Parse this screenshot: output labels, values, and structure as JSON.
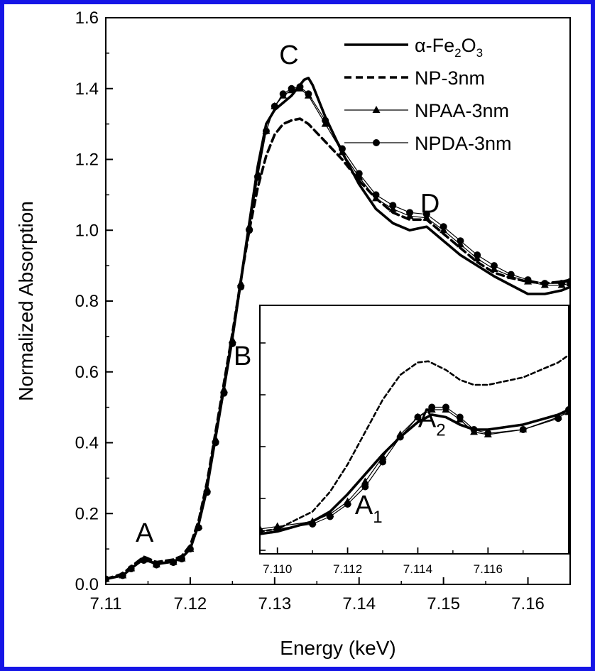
{
  "chart_data": [
    {
      "type": "line",
      "title": "",
      "xlabel": "Energy (keV)",
      "ylabel": "Normalized Absorption",
      "xlim": [
        7.11,
        7.165
      ],
      "ylim": [
        0.0,
        1.6
      ],
      "x_ticks": [
        "7.11",
        "7.12",
        "7.13",
        "7.14",
        "7.15",
        "7.16"
      ],
      "y_ticks": [
        "0.0",
        "0.2",
        "0.4",
        "0.6",
        "0.8",
        "1.0",
        "1.2",
        "1.4",
        "1.6"
      ],
      "legend_position": "top-right",
      "annotations": [
        {
          "text": "A",
          "x": 7.1146,
          "y": 0.12
        },
        {
          "text": "B",
          "x": 7.1262,
          "y": 0.62
        },
        {
          "text": "C",
          "x": 7.1317,
          "y": 1.47
        },
        {
          "text": "D",
          "x": 7.1484,
          "y": 1.05
        }
      ],
      "series": [
        {
          "name": "α-Fe2O3",
          "style": "solid-thick",
          "color": "#000000",
          "x": [
            7.11,
            7.112,
            7.113,
            7.1145,
            7.116,
            7.118,
            7.119,
            7.12,
            7.121,
            7.122,
            7.123,
            7.124,
            7.125,
            7.126,
            7.127,
            7.128,
            7.129,
            7.13,
            7.131,
            7.132,
            7.133,
            7.1335,
            7.134,
            7.1345,
            7.136,
            7.138,
            7.14,
            7.142,
            7.144,
            7.146,
            7.148,
            7.15,
            7.152,
            7.154,
            7.156,
            7.158,
            7.16,
            7.162,
            7.164,
            7.165
          ],
          "y": [
            0.015,
            0.025,
            0.045,
            0.072,
            0.058,
            0.065,
            0.075,
            0.1,
            0.17,
            0.28,
            0.42,
            0.56,
            0.7,
            0.86,
            1.02,
            1.18,
            1.3,
            1.34,
            1.36,
            1.38,
            1.41,
            1.425,
            1.43,
            1.41,
            1.32,
            1.22,
            1.13,
            1.06,
            1.02,
            1.0,
            1.01,
            0.97,
            0.93,
            0.9,
            0.87,
            0.845,
            0.82,
            0.82,
            0.83,
            0.84
          ]
        },
        {
          "name": "NP-3nm",
          "style": "dashed-thick",
          "color": "#000000",
          "x": [
            7.11,
            7.112,
            7.113,
            7.1145,
            7.116,
            7.118,
            7.119,
            7.12,
            7.121,
            7.122,
            7.123,
            7.124,
            7.125,
            7.126,
            7.127,
            7.128,
            7.129,
            7.13,
            7.131,
            7.132,
            7.133,
            7.134,
            7.136,
            7.138,
            7.14,
            7.142,
            7.144,
            7.146,
            7.148,
            7.15,
            7.152,
            7.154,
            7.156,
            7.158,
            7.16,
            7.162,
            7.164,
            7.165
          ],
          "y": [
            0.015,
            0.03,
            0.05,
            0.078,
            0.063,
            0.07,
            0.08,
            0.11,
            0.18,
            0.29,
            0.43,
            0.57,
            0.71,
            0.86,
            1.0,
            1.12,
            1.21,
            1.27,
            1.3,
            1.31,
            1.315,
            1.3,
            1.25,
            1.2,
            1.14,
            1.09,
            1.05,
            1.03,
            1.03,
            0.99,
            0.95,
            0.91,
            0.88,
            0.865,
            0.855,
            0.85,
            0.855,
            0.86
          ]
        },
        {
          "name": "NPAA-3nm",
          "style": "thin-triangle",
          "color": "#000000",
          "x": [
            7.11,
            7.112,
            7.113,
            7.1145,
            7.116,
            7.118,
            7.119,
            7.12,
            7.121,
            7.122,
            7.123,
            7.124,
            7.125,
            7.126,
            7.127,
            7.128,
            7.129,
            7.13,
            7.131,
            7.132,
            7.133,
            7.134,
            7.136,
            7.138,
            7.14,
            7.142,
            7.144,
            7.146,
            7.148,
            7.15,
            7.152,
            7.154,
            7.156,
            7.158,
            7.16,
            7.162,
            7.164,
            7.165
          ],
          "y": [
            0.015,
            0.025,
            0.045,
            0.07,
            0.056,
            0.063,
            0.073,
            0.1,
            0.165,
            0.27,
            0.41,
            0.55,
            0.69,
            0.85,
            1.01,
            1.16,
            1.28,
            1.35,
            1.38,
            1.395,
            1.4,
            1.38,
            1.3,
            1.22,
            1.15,
            1.09,
            1.06,
            1.04,
            1.035,
            1.0,
            0.96,
            0.92,
            0.89,
            0.87,
            0.855,
            0.845,
            0.845,
            0.85
          ]
        },
        {
          "name": "NPDA-3nm",
          "style": "thin-circle",
          "color": "#000000",
          "x": [
            7.11,
            7.112,
            7.113,
            7.1145,
            7.116,
            7.118,
            7.119,
            7.12,
            7.121,
            7.122,
            7.123,
            7.124,
            7.125,
            7.126,
            7.127,
            7.128,
            7.129,
            7.13,
            7.131,
            7.132,
            7.133,
            7.134,
            7.136,
            7.138,
            7.14,
            7.142,
            7.144,
            7.146,
            7.148,
            7.15,
            7.152,
            7.154,
            7.156,
            7.158,
            7.16,
            7.162,
            7.164,
            7.165
          ],
          "y": [
            0.015,
            0.025,
            0.044,
            0.068,
            0.055,
            0.062,
            0.072,
            0.1,
            0.16,
            0.26,
            0.4,
            0.54,
            0.68,
            0.84,
            1.0,
            1.15,
            1.28,
            1.35,
            1.385,
            1.4,
            1.405,
            1.385,
            1.31,
            1.23,
            1.16,
            1.1,
            1.07,
            1.05,
            1.045,
            1.01,
            0.97,
            0.93,
            0.9,
            0.875,
            0.86,
            0.85,
            0.85,
            0.855
          ]
        }
      ]
    },
    {
      "type": "line",
      "title": "",
      "xlabel": "",
      "ylabel": "",
      "xlim": [
        7.1095,
        7.1183
      ],
      "ylim": [
        0.0,
        1.0
      ],
      "x_ticks": [
        "7.110",
        "7.112",
        "7.114",
        "7.116"
      ],
      "annotations": [
        {
          "text": "A",
          "sub": "1",
          "x": 7.1126,
          "y": 0.16
        },
        {
          "text": "A",
          "sub": "2",
          "x": 7.1144,
          "y": 0.51
        }
      ],
      "series": [
        {
          "name": "α-Fe2O3",
          "style": "solid-thick",
          "color": "#000000",
          "x": [
            7.1095,
            7.11,
            7.111,
            7.1115,
            7.112,
            7.1125,
            7.113,
            7.1135,
            7.114,
            7.1144,
            7.1148,
            7.1152,
            7.1156,
            7.116,
            7.117,
            7.118,
            7.1183
          ],
          "y": [
            0.08,
            0.09,
            0.13,
            0.17,
            0.24,
            0.32,
            0.4,
            0.47,
            0.53,
            0.56,
            0.55,
            0.52,
            0.5,
            0.5,
            0.52,
            0.56,
            0.58
          ]
        },
        {
          "name": "NP-3nm",
          "style": "dashed-thin",
          "color": "#000000",
          "x": [
            7.1095,
            7.11,
            7.11,
            7.111,
            7.1115,
            7.112,
            7.1125,
            7.113,
            7.1135,
            7.114,
            7.1143,
            7.1148,
            7.1152,
            7.1156,
            7.116,
            7.117,
            7.118,
            7.1183
          ],
          "y": [
            0.09,
            0.1,
            0.1,
            0.17,
            0.25,
            0.36,
            0.49,
            0.62,
            0.72,
            0.77,
            0.775,
            0.74,
            0.7,
            0.68,
            0.68,
            0.71,
            0.77,
            0.8
          ]
        },
        {
          "name": "NPAA-3nm",
          "style": "thin-triangle",
          "color": "#000000",
          "x": [
            7.1095,
            7.11,
            7.111,
            7.1115,
            7.112,
            7.1125,
            7.113,
            7.1135,
            7.114,
            7.1144,
            7.1148,
            7.1152,
            7.1156,
            7.116,
            7.117,
            7.118,
            7.1183
          ],
          "y": [
            0.1,
            0.11,
            0.13,
            0.16,
            0.21,
            0.29,
            0.39,
            0.48,
            0.55,
            0.58,
            0.58,
            0.54,
            0.49,
            0.48,
            0.5,
            0.55,
            0.57
          ]
        },
        {
          "name": "NPDA-3nm",
          "style": "thin-circle",
          "color": "#000000",
          "x": [
            7.1095,
            7.11,
            7.111,
            7.1115,
            7.112,
            7.1125,
            7.113,
            7.1135,
            7.114,
            7.1144,
            7.1148,
            7.1152,
            7.1156,
            7.116,
            7.117,
            7.118,
            7.1183
          ],
          "y": [
            0.09,
            0.1,
            0.12,
            0.15,
            0.2,
            0.27,
            0.37,
            0.47,
            0.55,
            0.59,
            0.59,
            0.55,
            0.5,
            0.485,
            0.5,
            0.545,
            0.58
          ]
        }
      ]
    }
  ],
  "legend": [
    {
      "label": "α-Fe",
      "sub1": "2",
      "mid": "O",
      "sub2": "3",
      "style": "solid-thick"
    },
    {
      "label": "NP-3nm",
      "style": "dashed-thick"
    },
    {
      "label": "NPAA-3nm",
      "style": "thin-triangle"
    },
    {
      "label": "NPDA-3nm",
      "style": "thin-circle"
    }
  ]
}
